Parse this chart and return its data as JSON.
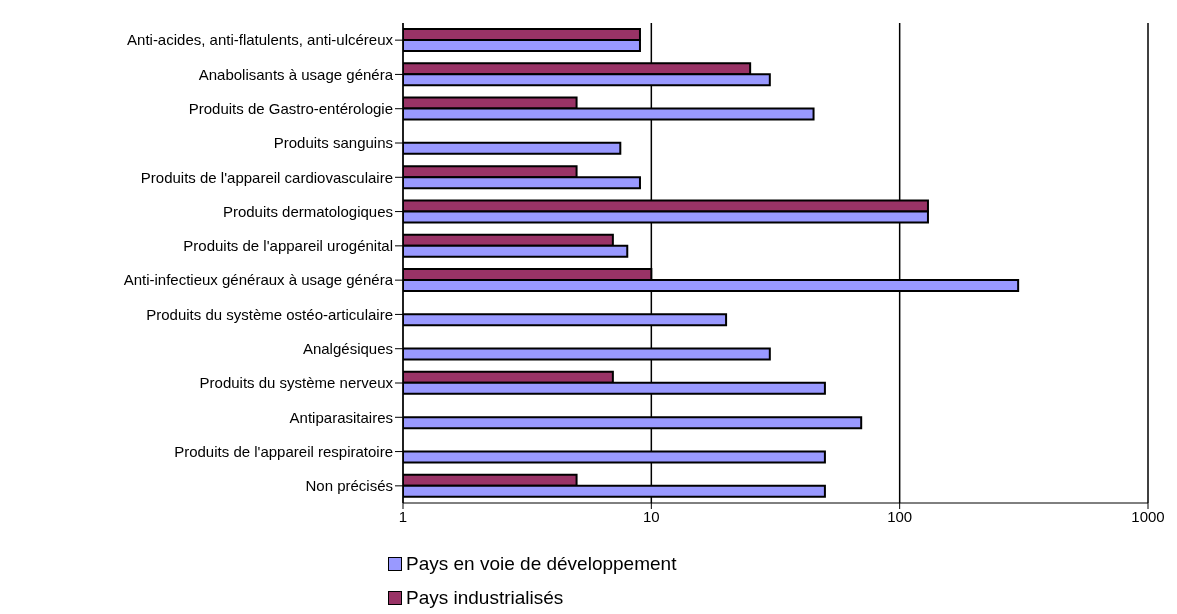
{
  "chart_data": {
    "type": "bar",
    "orientation": "horizontal",
    "log": "x",
    "categories": [
      "Anti-acides, anti-flatulents, anti-ulcéreux",
      "Anabolisants à usage généra",
      "Produits de Gastro-entérologie",
      "Produits sanguins",
      "Produits de l'appareil cardiovasculaire",
      "Produits dermatologiques",
      "Produits de l'appareil urogénital",
      "Anti-infectieux généraux à usage généra",
      "Produits du système ostéo-articulaire",
      "Analgésiques",
      "Produits du système nerveux",
      "Antiparasitaires",
      "Produits de l'appareil respiratoire",
      "Non précisés"
    ],
    "series": [
      {
        "name": "Pays en voie de développement",
        "color": "#9999ff",
        "values": [
          9,
          30,
          45,
          7.5,
          9,
          130,
          8,
          300,
          20,
          30,
          50,
          70,
          50,
          50
        ]
      },
      {
        "name": "Pays industrialisés",
        "color": "#993366",
        "values": [
          9,
          25,
          5,
          null,
          5,
          130,
          7,
          10,
          null,
          null,
          7,
          null,
          null,
          5
        ]
      }
    ],
    "xlim": [
      1,
      1000
    ],
    "xticks": [
      1,
      10,
      100,
      1000
    ],
    "grid": "x",
    "legend": "bottom"
  }
}
